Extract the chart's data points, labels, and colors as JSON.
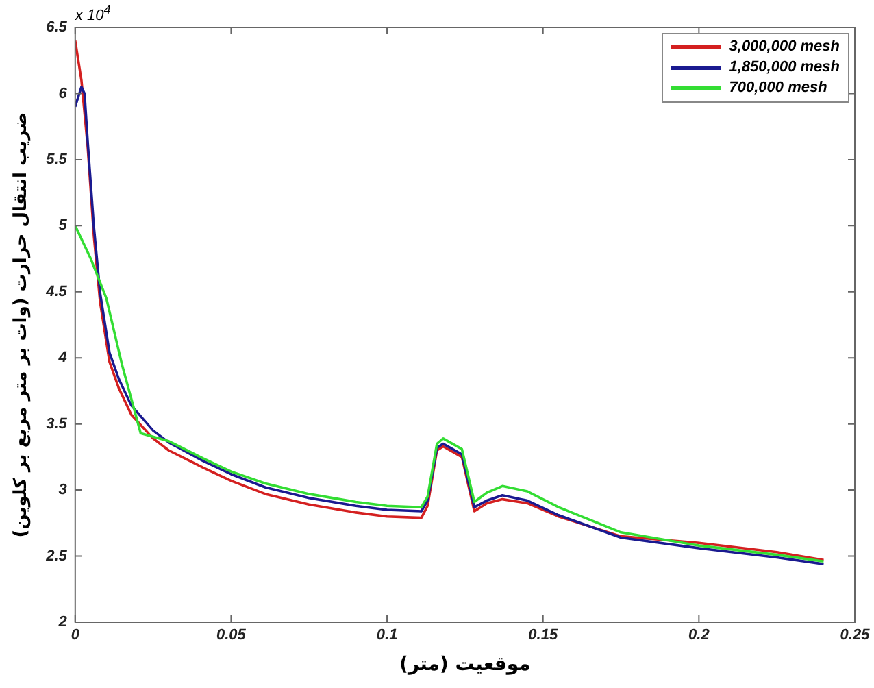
{
  "chart_data": {
    "type": "line",
    "xlabel": "موقعیت (متر)",
    "ylabel": "ضریب انتقال حرارت (وات بر متر مربع بر کلوین)",
    "annotations": [
      "x 10$^{4}$"
    ],
    "xlim": [
      0,
      0.25
    ],
    "xticks": [
      0,
      0.05,
      0.1,
      0.15,
      0.2,
      0.25
    ],
    "ylim": [
      2,
      6.5
    ],
    "yticks": [
      2,
      2.5,
      3,
      3.5,
      4,
      4.5,
      5,
      5.5,
      6,
      6.5
    ],
    "grid": false,
    "legend": "top right",
    "marker": "none",
    "line_style": "solid",
    "series": [
      {
        "name": "3,000,000 mesh",
        "color": "#d42020",
        "x": [
          0,
          0.002,
          0.004,
          0.006,
          0.008,
          0.011,
          0.014,
          0.018,
          0.025,
          0.03,
          0.041,
          0.05,
          0.061,
          0.075,
          0.09,
          0.1,
          0.111,
          0.113,
          0.116,
          0.118,
          0.124,
          0.128,
          0.132,
          0.137,
          0.145,
          0.155,
          0.175,
          0.2,
          0.225,
          0.24
        ],
        "values": [
          6.4,
          6.1,
          5.6,
          4.92,
          4.42,
          3.97,
          3.77,
          3.57,
          3.39,
          3.3,
          3.17,
          3.07,
          2.97,
          2.89,
          2.83,
          2.8,
          2.79,
          2.88,
          3.3,
          3.33,
          3.25,
          2.84,
          2.9,
          2.93,
          2.9,
          2.8,
          2.65,
          2.6,
          2.53,
          2.47
        ]
      },
      {
        "name": "1,850,000 mesh",
        "color": "#1a1a90",
        "x": [
          0,
          0.002,
          0.003,
          0.004,
          0.006,
          0.008,
          0.011,
          0.014,
          0.018,
          0.025,
          0.03,
          0.041,
          0.05,
          0.061,
          0.075,
          0.09,
          0.1,
          0.111,
          0.113,
          0.116,
          0.118,
          0.124,
          0.128,
          0.132,
          0.137,
          0.145,
          0.155,
          0.175,
          0.2,
          0.225,
          0.24
        ],
        "values": [
          5.9,
          6.05,
          6.0,
          5.64,
          4.99,
          4.49,
          4.04,
          3.84,
          3.64,
          3.45,
          3.36,
          3.22,
          3.12,
          3.02,
          2.94,
          2.88,
          2.85,
          2.84,
          2.92,
          3.32,
          3.35,
          3.27,
          2.87,
          2.92,
          2.96,
          2.92,
          2.81,
          2.64,
          2.56,
          2.49,
          2.44
        ]
      },
      {
        "name": "700,000 mesh",
        "color": "#33dd33",
        "x": [
          0,
          0.005,
          0.01,
          0.015,
          0.021,
          0.03,
          0.041,
          0.05,
          0.061,
          0.075,
          0.09,
          0.1,
          0.111,
          0.113,
          0.116,
          0.118,
          0.124,
          0.128,
          0.132,
          0.137,
          0.145,
          0.155,
          0.175,
          0.2,
          0.225,
          0.24
        ],
        "values": [
          5.0,
          4.75,
          4.45,
          3.95,
          3.43,
          3.37,
          3.24,
          3.14,
          3.05,
          2.97,
          2.91,
          2.88,
          2.87,
          2.95,
          3.35,
          3.39,
          3.31,
          2.91,
          2.98,
          3.03,
          2.99,
          2.87,
          2.68,
          2.58,
          2.51,
          2.46
        ]
      }
    ]
  }
}
